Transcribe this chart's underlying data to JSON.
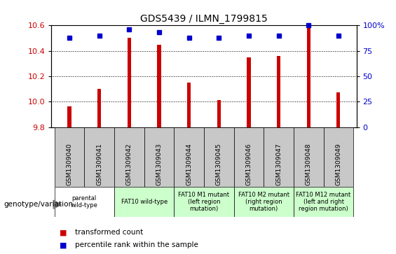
{
  "title": "GDS5439 / ILMN_1799815",
  "samples": [
    "GSM1309040",
    "GSM1309041",
    "GSM1309042",
    "GSM1309043",
    "GSM1309044",
    "GSM1309045",
    "GSM1309046",
    "GSM1309047",
    "GSM1309048",
    "GSM1309049"
  ],
  "bar_values": [
    9.96,
    10.1,
    10.5,
    10.45,
    10.15,
    10.01,
    10.35,
    10.36,
    10.58,
    10.07
  ],
  "dot_values": [
    88,
    90,
    96,
    93,
    88,
    88,
    90,
    90,
    100,
    90
  ],
  "ylim_left": [
    9.8,
    10.6
  ],
  "ylim_right": [
    0,
    100
  ],
  "yticks_left": [
    9.8,
    10.0,
    10.2,
    10.4,
    10.6
  ],
  "yticks_right": [
    0,
    25,
    50,
    75,
    100
  ],
  "bar_color": "#cc0000",
  "dot_color": "#0000cc",
  "bar_width": 0.12,
  "groups": [
    {
      "label": "parental\nwild-type",
      "start": 0,
      "end": 2,
      "color": "#ffffff"
    },
    {
      "label": "FAT10 wild-type",
      "start": 2,
      "end": 4,
      "color": "#ccffcc"
    },
    {
      "label": "FAT10 M1 mutant\n(left region\nmutation)",
      "start": 4,
      "end": 6,
      "color": "#ccffcc"
    },
    {
      "label": "FAT10 M2 mutant\n(right region\nmutation)",
      "start": 6,
      "end": 8,
      "color": "#ccffcc"
    },
    {
      "label": "FAT10 M12 mutant\n(left and right\nregion mutation)",
      "start": 8,
      "end": 10,
      "color": "#ccffcc"
    }
  ],
  "legend_items": [
    {
      "color": "#cc0000",
      "label": "transformed count"
    },
    {
      "color": "#0000cc",
      "label": "percentile rank within the sample"
    }
  ],
  "genotype_label": "genotype/variation",
  "sample_cell_color": "#c8c8c8",
  "plot_bg_color": "#ffffff",
  "fig_bg_color": "#ffffff"
}
